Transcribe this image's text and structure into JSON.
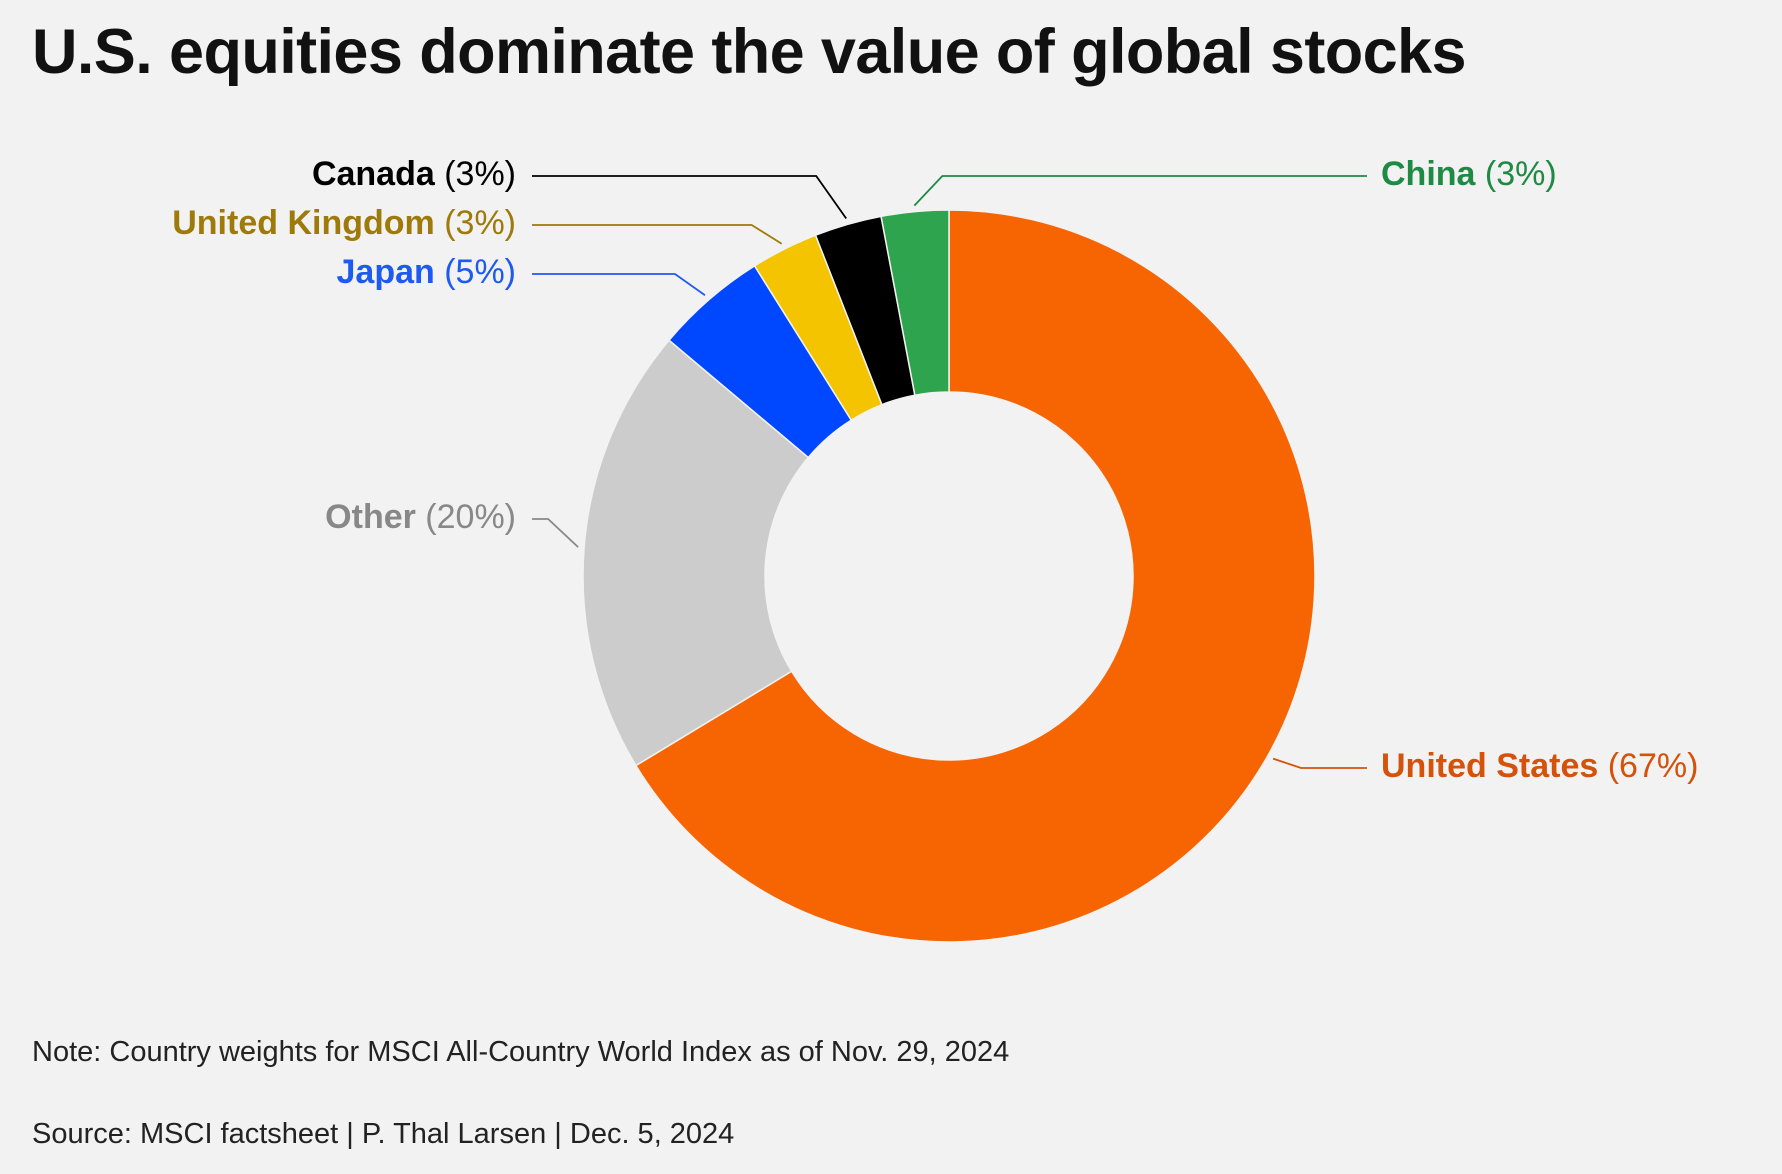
{
  "title": "U.S. equities dominate the value of global stocks",
  "note": "Note: Country weights for MSCI All-Country World Index as of Nov. 29, 2024",
  "source": "Source: MSCI factsheet | P. Thal Larsen | Dec. 5, 2024",
  "chart_data": {
    "type": "pie",
    "variant": "donut",
    "title": "U.S. equities dominate the value of global stocks",
    "unit": "%",
    "slices": [
      {
        "label": "United States",
        "value_label": "(67%)",
        "value": 67,
        "color": "#f76503",
        "label_color": "#d4520a"
      },
      {
        "label": "Other",
        "value_label": "(20%)",
        "value": 20,
        "color": "#cccccc",
        "label_color": "#888888"
      },
      {
        "label": "Japan",
        "value_label": "(5%)",
        "value": 5,
        "color": "#0048ff",
        "label_color": "#1f5af0"
      },
      {
        "label": "United Kingdom",
        "value_label": "(3%)",
        "value": 3,
        "color": "#f5c400",
        "label_color": "#9e7a0a"
      },
      {
        "label": "Canada",
        "value_label": "(3%)",
        "value": 3,
        "color": "#000000",
        "label_color": "#000000"
      },
      {
        "label": "China",
        "value_label": "(3%)",
        "value": 3,
        "color": "#2ea44f",
        "label_color": "#1e8a43"
      }
    ]
  }
}
